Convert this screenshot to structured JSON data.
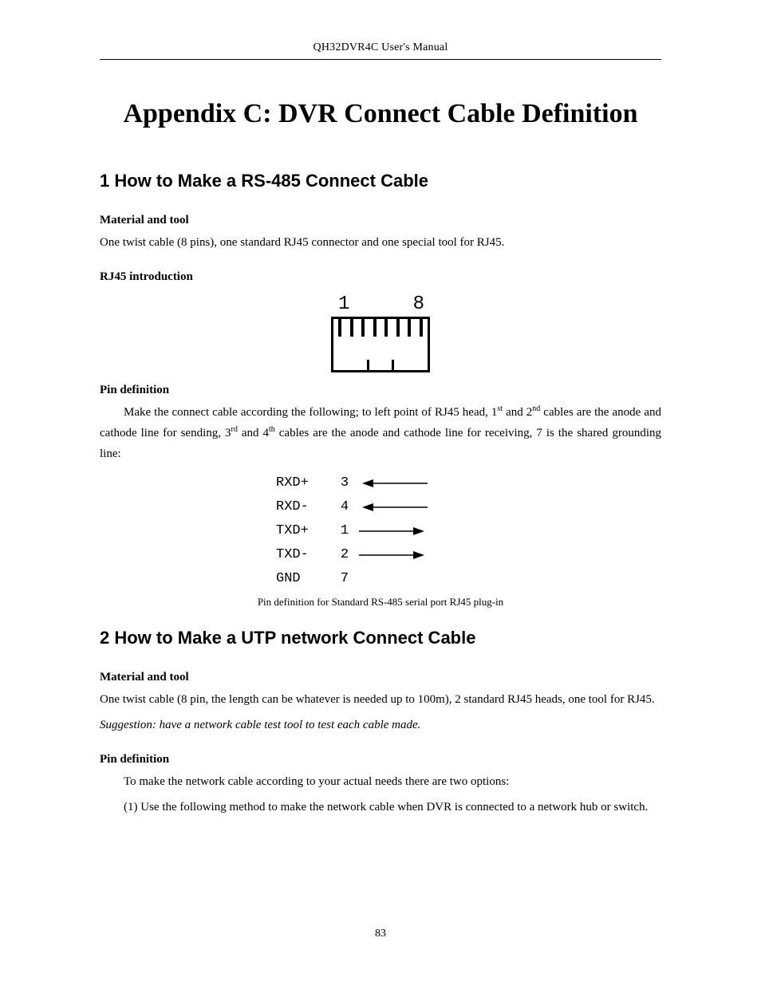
{
  "header": "QH32DVR4C User's Manual",
  "title": "Appendix C: DVR Connect Cable Definition",
  "page_number": "83",
  "colors": {
    "text": "#000000",
    "background": "#ffffff",
    "rule": "#000000"
  },
  "fonts": {
    "body_family": "Times New Roman",
    "heading_family": "Arial",
    "mono_family": "Courier New",
    "h1_size_pt": 26,
    "h2_size_pt": 16,
    "h3_size_pt": 11,
    "body_size_pt": 11,
    "caption_size_pt": 10
  },
  "section1": {
    "heading": "1  How to Make a RS-485 Connect Cable",
    "sub1_title": "Material and tool",
    "sub1_text": "One twist cable (8 pins), one standard RJ45 connector and one special tool for RJ45.",
    "sub2_title": "RJ45 introduction",
    "rj45": {
      "left_label": "1",
      "right_label": "8",
      "pin_count": 8
    },
    "sub3_title": "Pin definition",
    "sub3_text_prefix": "Make the connect cable according the following; to left point of RJ45 head, 1",
    "sub3_sup1": "st",
    "sub3_mid1": " and 2",
    "sub3_sup2": "nd",
    "sub3_mid2": " cables are the anode and cathode line for sending, 3",
    "sub3_sup3": "rd",
    "sub3_mid3": " and 4",
    "sub3_sup4": "th",
    "sub3_suffix": " cables are the anode and cathode line for receiving, 7 is the shared grounding line:",
    "pins": [
      {
        "label": "RXD+",
        "num": "3",
        "dir": "in"
      },
      {
        "label": "RXD-",
        "num": "4",
        "dir": "in"
      },
      {
        "label": "TXD+",
        "num": "1",
        "dir": "out"
      },
      {
        "label": "TXD-",
        "num": "2",
        "dir": "out"
      },
      {
        "label": "GND",
        "num": "7",
        "dir": "none"
      }
    ],
    "caption": "Pin definition for Standard RS-485 serial port RJ45 plug-in"
  },
  "section2": {
    "heading": "2  How to Make a UTP network Connect Cable",
    "sub1_title": "Material and tool",
    "sub1_text": "One twist cable (8 pin, the length can be whatever is needed up to 100m), 2 standard RJ45 heads, one tool for RJ45.",
    "suggestion": "Suggestion:    have a network cable test tool to test each cable made.",
    "sub2_title": "Pin definition",
    "sub2_text1": "To make the network cable according to your actual needs there are two options:",
    "sub2_text2": "(1) Use the following method to make the network cable when DVR is connected to a network hub or switch."
  }
}
